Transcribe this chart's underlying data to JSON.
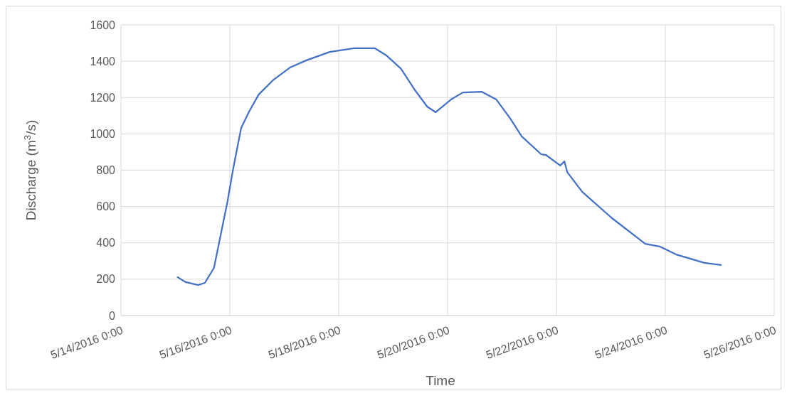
{
  "chart_data": {
    "type": "line",
    "xlabel": "Time",
    "ylabel": "Discharge (m$^{3}$/s)",
    "xlim": [
      "2016-05-14",
      "2016-05-26"
    ],
    "xticks": [
      {
        "value": "2016-05-14",
        "label": "5/14/2016 0:00"
      },
      {
        "value": "2016-05-16",
        "label": "5/16/2016 0:00"
      },
      {
        "value": "2016-05-18",
        "label": "5/18/2016 0:00"
      },
      {
        "value": "2016-05-20",
        "label": "5/20/2016 0:00"
      },
      {
        "value": "2016-05-22",
        "label": "5/22/2016 0:00"
      },
      {
        "value": "2016-05-24",
        "label": "5/24/2016 0:00"
      },
      {
        "value": "2016-05-26",
        "label": "5/26/2016 0:00"
      }
    ],
    "ylim": [
      0,
      1600
    ],
    "yticks": [
      0,
      200,
      400,
      600,
      800,
      1000,
      1200,
      1400,
      1600
    ],
    "grid": true,
    "marker": "none",
    "line_style": "solid",
    "series": [
      {
        "color": "#4472c4",
        "x": [
          "2016-05-15T01:00",
          "2016-05-15T04:30",
          "2016-05-15T10:00",
          "2016-05-15T13:00",
          "2016-05-15T17:00",
          "2016-05-15T20:00",
          "2016-05-15T23:00",
          "2016-05-16T01:30",
          "2016-05-16T05:00",
          "2016-05-16T08:30",
          "2016-05-16T12:45",
          "2016-05-16T19:00",
          "2016-05-17T02:30",
          "2016-05-17T09:45",
          "2016-05-17T20:00",
          "2016-05-18T06:45",
          "2016-05-18T16:00",
          "2016-05-18T21:00",
          "2016-05-19T03:30",
          "2016-05-19T09:40",
          "2016-05-19T15:00",
          "2016-05-19T18:45",
          "2016-05-20T01:30",
          "2016-05-20T06:45",
          "2016-05-20T15:00",
          "2016-05-20T21:30",
          "2016-05-21T03:40",
          "2016-05-21T08:40",
          "2016-05-21T17:15",
          "2016-05-21T19:20",
          "2016-05-22T01:40",
          "2016-05-22T03:30",
          "2016-05-22T04:45",
          "2016-05-22T11:20",
          "2016-05-23T00:30",
          "2016-05-23T15:10",
          "2016-05-23T21:30",
          "2016-05-24T04:45",
          "2016-05-24T17:15",
          "2016-05-25T00:30"
        ],
        "values": [
          211,
          184,
          168,
          180,
          262,
          446,
          630,
          810,
          1033,
          1123,
          1217,
          1295,
          1365,
          1405,
          1451,
          1471,
          1471,
          1432,
          1358,
          1240,
          1150,
          1119,
          1189,
          1228,
          1232,
          1189,
          1084,
          986,
          888,
          884,
          826,
          849,
          790,
          681,
          536,
          395,
          380,
          336,
          290,
          278
        ]
      }
    ]
  }
}
